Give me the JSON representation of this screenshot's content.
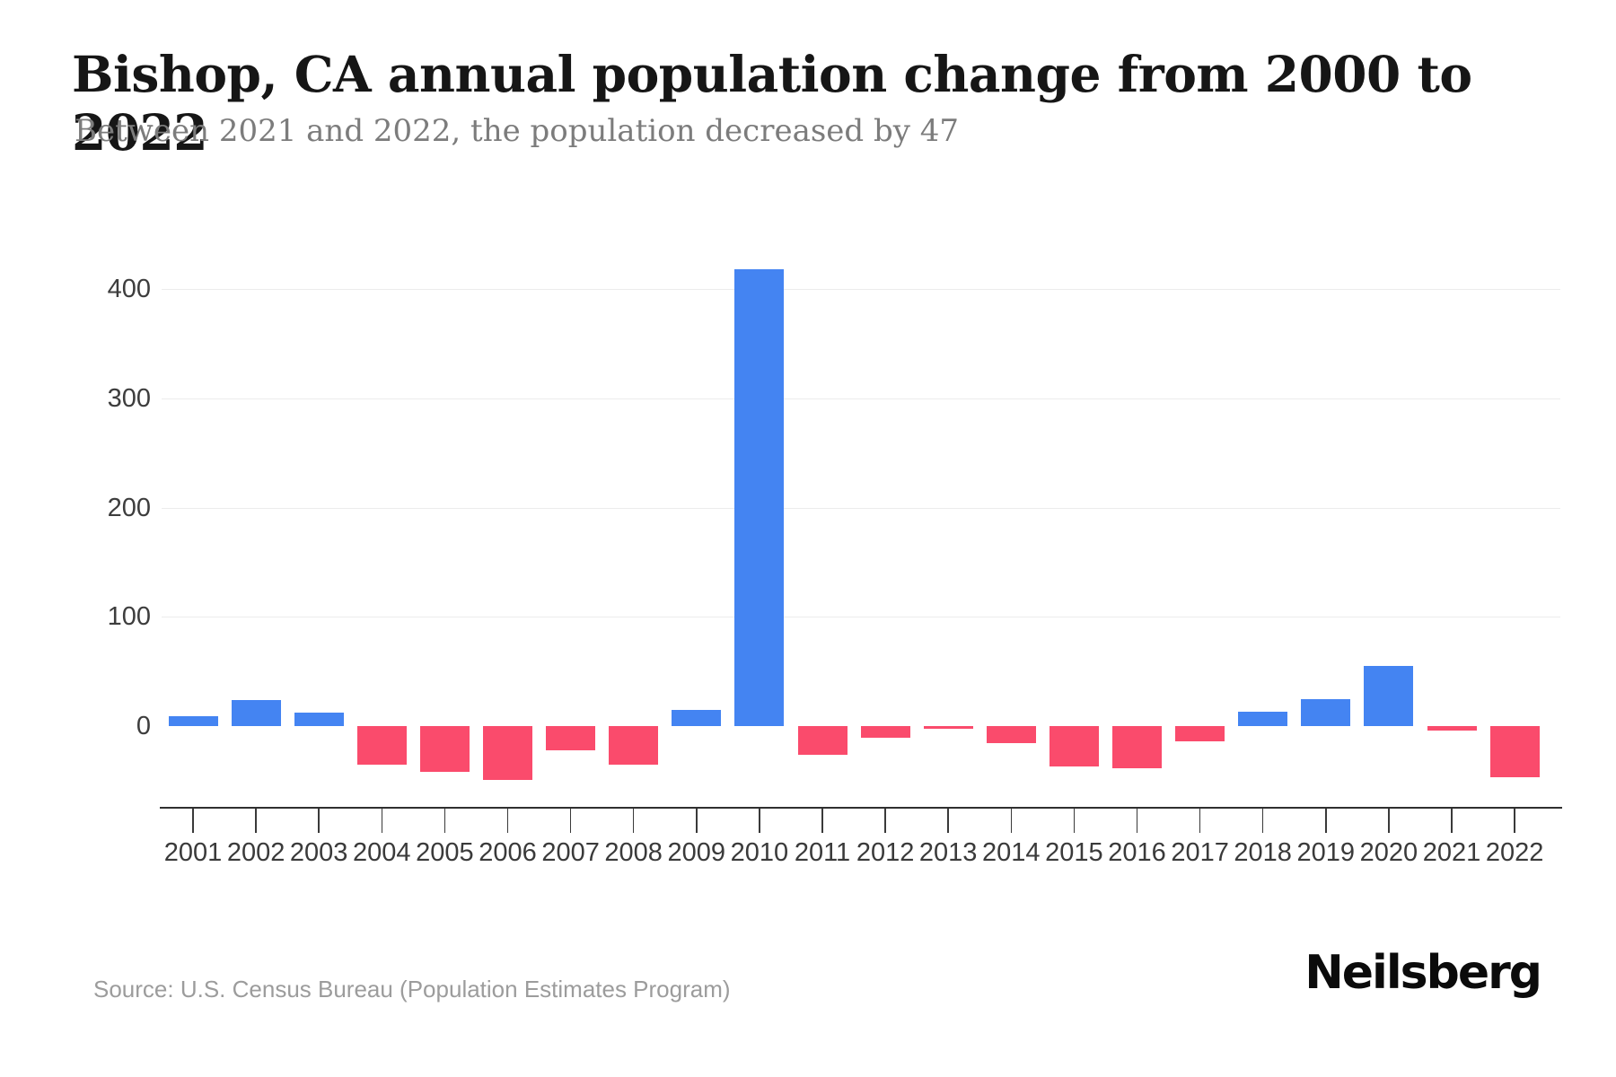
{
  "header": {
    "title": "Bishop, CA annual population change from 2000 to 2022",
    "subtitle": "Between 2021 and 2022, the population decreased by 47"
  },
  "footer": {
    "source": "Source: U.S. Census Bureau (Population Estimates Program)",
    "brand": "Neilsberg"
  },
  "chart_data": {
    "type": "bar",
    "title": "Bishop, CA annual population change from 2000 to 2022",
    "categories": [
      "2001",
      "2002",
      "2003",
      "2004",
      "2005",
      "2006",
      "2007",
      "2008",
      "2009",
      "2010",
      "2011",
      "2012",
      "2013",
      "2014",
      "2015",
      "2016",
      "2017",
      "2018",
      "2019",
      "2020",
      "2021",
      "2022"
    ],
    "values": [
      9,
      24,
      12,
      -35,
      -42,
      -49,
      -22,
      -35,
      15,
      418,
      -26,
      -11,
      -2,
      -16,
      -37,
      -39,
      -14,
      13,
      25,
      55,
      -4,
      -47
    ],
    "xlabel": "",
    "ylabel": "",
    "ytick_labels": [
      "0",
      "100",
      "200",
      "300",
      "400"
    ],
    "yticks": [
      0,
      100,
      200,
      300,
      400
    ],
    "ylim": [
      -75,
      430
    ],
    "grid": "horizontal-only",
    "legend": "none",
    "colors": {
      "positive_bar": "#4484F2",
      "negative_bar": "#FA4B6C",
      "gridline": "#ececec",
      "axis": "#2f2f2f",
      "tick_label": "#3d3d3d"
    }
  }
}
